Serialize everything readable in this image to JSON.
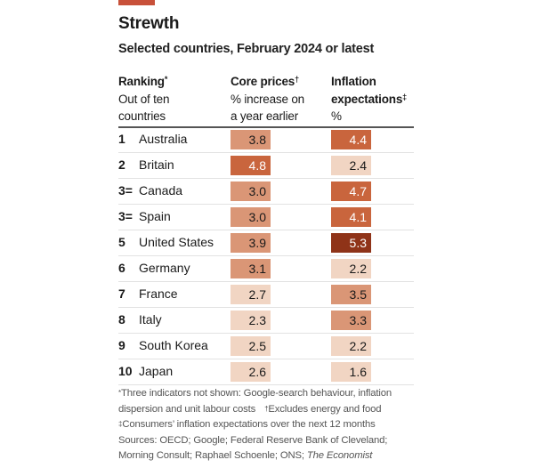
{
  "accent_color": "#c8513a",
  "title": "Strewth",
  "subtitle": "Selected countries, February 2024 or latest",
  "headers": {
    "ranking": {
      "bold": "Ranking",
      "mark": "*",
      "line2": "Out of ten",
      "line3": "countries"
    },
    "core": {
      "bold": "Core prices",
      "mark": "†",
      "line2": "% increase on",
      "line3": "a year earlier"
    },
    "inflation": {
      "bold1": "Inflation",
      "bold2": "expectations",
      "mark": "‡",
      "line3": "%"
    }
  },
  "color_scale": {
    "light": "#f1d5c3",
    "medium": "#da9676",
    "dark": "#c9653d",
    "darkest": "#8f3318"
  },
  "chart_data": {
    "type": "table",
    "title": "Strewth",
    "subtitle": "Selected countries, February 2024 or latest",
    "columns": [
      "Ranking (out of ten countries)",
      "Country",
      "Core prices, % increase on a year earlier",
      "Inflation expectations, %"
    ],
    "rows": [
      {
        "rank": "1",
        "country": "Australia",
        "core": 3.8,
        "inflation": 4.4
      },
      {
        "rank": "2",
        "country": "Britain",
        "core": 4.8,
        "inflation": 2.4
      },
      {
        "rank": "3=",
        "country": "Canada",
        "core": 3.0,
        "inflation": 4.7
      },
      {
        "rank": "3=",
        "country": "Spain",
        "core": 3.0,
        "inflation": 4.1
      },
      {
        "rank": "5",
        "country": "United States",
        "core": 3.9,
        "inflation": 5.3
      },
      {
        "rank": "6",
        "country": "Germany",
        "core": 3.1,
        "inflation": 2.2
      },
      {
        "rank": "7",
        "country": "France",
        "core": 2.7,
        "inflation": 3.5
      },
      {
        "rank": "8",
        "country": "Italy",
        "core": 2.3,
        "inflation": 3.3
      },
      {
        "rank": "9",
        "country": "South Korea",
        "core": 2.5,
        "inflation": 2.2
      },
      {
        "rank": "10",
        "country": "Japan",
        "core": 2.6,
        "inflation": 1.6
      }
    ]
  },
  "notes": {
    "n1": "Three indicators not shown: Google-search behaviour, inflation dispersion and unit labour costs",
    "n2": "Excludes energy and food",
    "n3": "Consumers’ inflation expectations over the next 12 months",
    "sources": "Sources: OECD; Google; Federal Reserve Bank of Cleveland; Morning Consult; Raphael Schoenle; ONS; ",
    "sources_italic": "The Economist"
  }
}
